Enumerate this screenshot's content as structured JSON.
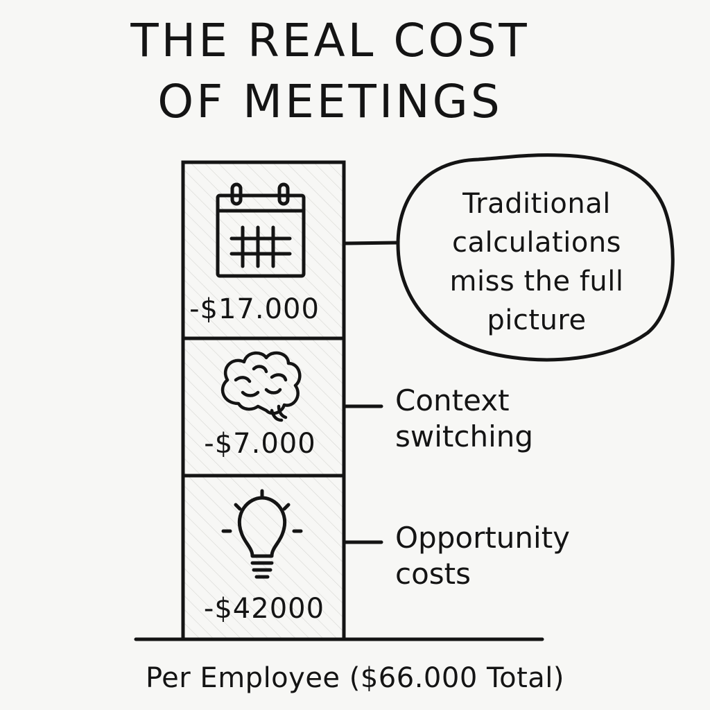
{
  "title": {
    "line1": "THE REAL COST",
    "line2": "OF MEETINGS"
  },
  "blocks": [
    {
      "icon": "calendar-icon",
      "amount": "-$17.000"
    },
    {
      "icon": "brain-icon",
      "amount": "-$7.000"
    },
    {
      "icon": "lightbulb-icon",
      "amount": "-$42000"
    }
  ],
  "callout": {
    "line1": "Traditional",
    "line2": "calculations",
    "line3": "miss the full",
    "line4": "picture"
  },
  "labels": {
    "context_line1": "Context",
    "context_line2": "switching",
    "opportunity_line1": "Opportunity",
    "opportunity_line2": "costs"
  },
  "footer": "Per Employee ($66.000 Total)"
}
